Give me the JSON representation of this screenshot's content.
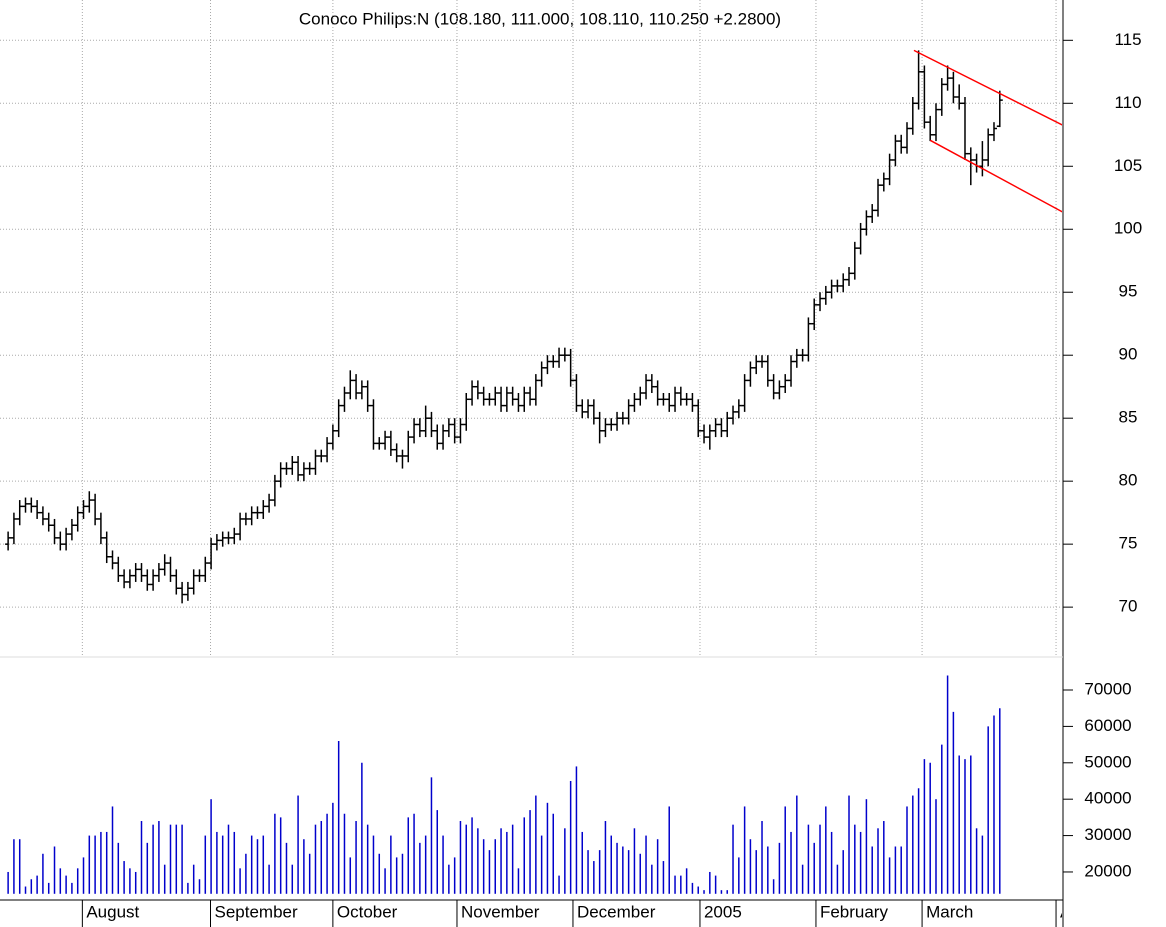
{
  "chart_data": [
    {
      "type": "ohlc",
      "title": "Conoco Philips:N (108.180, 111.000, 108.110, 110.250 +2.2800)",
      "color": "#000000",
      "grid": true,
      "xlim": [
        -1.4,
        181.9
      ],
      "ylim": [
        66.2,
        118.2
      ],
      "yticks": [
        70,
        75,
        80,
        85,
        90,
        95,
        100,
        105,
        110,
        115
      ],
      "open": [
        75,
        75.5,
        77,
        78,
        78.2,
        78,
        77.5,
        77,
        76.5,
        75.5,
        75,
        75.8,
        76.5,
        77.5,
        78,
        78.5,
        77,
        75.5,
        74,
        73.5,
        72.5,
        72,
        72.5,
        73,
        72.5,
        71.8,
        72.5,
        73,
        73.5,
        72.5,
        71.5,
        71,
        71.5,
        72.5,
        72.5,
        73.5,
        75,
        75.3,
        75.5,
        75.5,
        75.8,
        77,
        77,
        77.5,
        77.5,
        78,
        78.5,
        80,
        81,
        81,
        81.5,
        80.5,
        81,
        81,
        82,
        82,
        83,
        84,
        86,
        87,
        88,
        87,
        87.5,
        86,
        83,
        83,
        83.5,
        82.5,
        82,
        82,
        83.5,
        84.5,
        84,
        85,
        84,
        83,
        84,
        84.5,
        83.5,
        84.5,
        86.5,
        87.5,
        87,
        86.5,
        86.5,
        87,
        86,
        87,
        86.5,
        86,
        87,
        86.5,
        88,
        89,
        89.5,
        89.5,
        90,
        90,
        88,
        86,
        85.5,
        86,
        85,
        84,
        84.5,
        84.5,
        85,
        85,
        86,
        86.5,
        87,
        88,
        87.5,
        86.5,
        86.5,
        86,
        87,
        86.5,
        86.5,
        86,
        84,
        83.5,
        84,
        84.5,
        84,
        85,
        85.5,
        86,
        88,
        89,
        89.5,
        89.5,
        88,
        87,
        87.5,
        88,
        89.5,
        90,
        90,
        92.5,
        94,
        94.5,
        95,
        95.5,
        95.5,
        96,
        96.5,
        98.5,
        100,
        101,
        101.5,
        103.5,
        104,
        105.5,
        107,
        106.5,
        108,
        110,
        112.5,
        108.5,
        107.5,
        109.5,
        111.5,
        112,
        110.5,
        110,
        106,
        105.5,
        105,
        105.5,
        107.5,
        108.18
      ],
      "high": [
        76,
        77.5,
        78.5,
        78.7,
        78.7,
        78.5,
        78,
        77.5,
        77,
        76,
        76.3,
        77,
        78,
        78.5,
        79.2,
        79,
        77.5,
        76,
        74.5,
        74,
        73,
        73,
        73.5,
        73.5,
        73,
        73,
        73.5,
        74.2,
        74,
        73,
        72,
        72,
        73,
        73,
        74,
        75.5,
        75.8,
        76,
        76,
        76.3,
        77.5,
        77.5,
        78,
        78,
        78.5,
        79,
        80.5,
        81.5,
        81.5,
        82,
        82,
        81.5,
        81.5,
        82.5,
        82.5,
        83.5,
        84.5,
        86.5,
        87.5,
        88.8,
        88.5,
        88,
        88,
        86.5,
        83.5,
        84,
        84,
        83,
        82.5,
        84,
        85,
        85,
        86,
        85.5,
        84.5,
        84.5,
        85,
        85,
        85,
        87,
        88,
        88,
        87.5,
        87,
        87.5,
        87.5,
        87.5,
        87.5,
        87,
        87.5,
        87.5,
        88.5,
        89.5,
        90,
        90,
        90.6,
        90.6,
        90.5,
        88.5,
        86.5,
        86.5,
        86.5,
        85.5,
        85,
        85,
        85.5,
        85.5,
        86.5,
        87,
        87.5,
        88.5,
        88.5,
        88,
        87,
        87,
        87.5,
        87.5,
        87,
        87,
        86.5,
        84.5,
        84.5,
        85,
        85,
        85.5,
        86,
        86.5,
        88.5,
        89.5,
        90,
        90,
        90,
        88.5,
        88,
        88.5,
        90,
        90.5,
        90.5,
        93,
        94.5,
        95,
        95.5,
        96,
        96,
        96.5,
        97,
        99,
        100.5,
        101.5,
        102,
        104,
        104.5,
        106,
        107.5,
        107.5,
        108.5,
        110.5,
        114.2,
        113,
        109,
        110,
        112,
        113,
        112.5,
        111.5,
        110.5,
        106.5,
        106,
        107,
        108,
        108.5,
        111
      ],
      "low": [
        74.5,
        75,
        76.5,
        77.5,
        77.5,
        77,
        76.5,
        76,
        75,
        74.5,
        74.5,
        75.3,
        76,
        77,
        77.5,
        76.5,
        75,
        73.5,
        73,
        72,
        71.5,
        71.5,
        72,
        72,
        71.3,
        71.3,
        72,
        72.5,
        72,
        71,
        70.3,
        70.5,
        71,
        72,
        72,
        73,
        74.5,
        74.8,
        75,
        75,
        75.3,
        76.5,
        76.5,
        77,
        77,
        77.5,
        78,
        79.5,
        80.5,
        80.5,
        80,
        80,
        80.5,
        80.5,
        81.5,
        81.5,
        82.5,
        83.5,
        85.5,
        86.5,
        86.5,
        86.5,
        85.5,
        82.5,
        82.5,
        82.5,
        82,
        81.5,
        81,
        81.5,
        83,
        83.5,
        83.5,
        83.5,
        82.5,
        82.5,
        83.5,
        83,
        83,
        84,
        86,
        86.5,
        86,
        86,
        86,
        85.5,
        85.5,
        86,
        85.5,
        85.5,
        86,
        86,
        87.5,
        88.5,
        89,
        89,
        89.5,
        87.5,
        85.5,
        85,
        85,
        84.5,
        83,
        83.5,
        84,
        84,
        84.5,
        84.5,
        85.5,
        86,
        86.5,
        87,
        86,
        86,
        85.5,
        85.5,
        86,
        86,
        85.5,
        83.5,
        83,
        82.5,
        83.5,
        83.5,
        83.5,
        84.5,
        85,
        85.5,
        87.5,
        88.5,
        89,
        87.5,
        86.5,
        86.5,
        87,
        87.5,
        89,
        89.5,
        89.5,
        92,
        93.5,
        94,
        94.5,
        95,
        95,
        95.5,
        96,
        98,
        99.5,
        100.5,
        101,
        103,
        103.5,
        105,
        106,
        106,
        107.5,
        109.5,
        108,
        107,
        107,
        109,
        111,
        110,
        109.5,
        105.5,
        103.5,
        104.5,
        104.2,
        105,
        107,
        108.11
      ],
      "close": [
        75.5,
        77,
        78,
        78.2,
        78,
        77.5,
        77,
        76.5,
        75.5,
        75,
        75.8,
        76.5,
        77.5,
        78,
        78.5,
        77,
        75.5,
        74,
        73.5,
        72.5,
        72,
        72.5,
        73,
        72.5,
        71.8,
        72.5,
        73,
        73.5,
        72.5,
        71.5,
        71,
        71.5,
        72.5,
        72.5,
        73.5,
        75,
        75.3,
        75.5,
        75.5,
        75.8,
        77,
        77,
        77.5,
        77.5,
        78,
        78.5,
        80,
        81,
        81,
        81.5,
        80.5,
        81,
        81,
        82,
        82,
        83,
        84,
        86,
        87,
        88,
        87,
        87.5,
        86,
        83,
        83,
        83.5,
        82.5,
        82,
        82,
        83.5,
        84.5,
        84,
        85,
        84,
        83,
        84,
        84.5,
        83.5,
        84.5,
        86.5,
        87.5,
        87,
        86.5,
        86.5,
        87,
        86,
        87,
        86.5,
        86,
        87,
        86.5,
        88,
        89,
        89.5,
        89.5,
        90,
        90,
        88,
        86,
        85.5,
        86,
        85,
        84,
        84.5,
        84.5,
        85,
        85,
        86,
        86.5,
        87,
        88,
        87.5,
        86.5,
        86.5,
        86,
        87,
        86.5,
        86.5,
        86,
        84,
        83.5,
        84,
        84.5,
        84,
        85,
        85.5,
        86,
        88,
        89,
        89.5,
        89.5,
        88,
        87,
        87.5,
        88,
        89.5,
        90,
        90,
        92.5,
        94,
        94.5,
        95,
        95.5,
        95.5,
        96,
        96.5,
        98.5,
        100,
        101,
        101.5,
        103.5,
        104,
        105.5,
        107,
        106.5,
        108,
        110,
        112.5,
        108.5,
        107.5,
        109.5,
        111.5,
        112,
        110.5,
        110,
        106,
        105.5,
        105,
        105.5,
        107.5,
        108,
        110.25
      ],
      "lines": [
        {
          "color": "#ff0000",
          "x": [
            156.2,
            181.9
          ],
          "y": [
            114.2,
            108.25
          ]
        },
        {
          "color": "#ff0000",
          "x": [
            159,
            181.9
          ],
          "y": [
            107.06,
            101.35
          ]
        }
      ]
    },
    {
      "type": "bar",
      "color": "#0000cc",
      "xlim": [
        -1.4,
        181.9
      ],
      "ylim": [
        14000,
        78000
      ],
      "yticks": [
        20000,
        30000,
        40000,
        50000,
        60000,
        70000
      ],
      "xticks": [
        {
          "value": 12.8,
          "label": "August"
        },
        {
          "value": 34.9,
          "label": "September"
        },
        {
          "value": 56,
          "label": "October"
        },
        {
          "value": 77.4,
          "label": "November"
        },
        {
          "value": 97.4,
          "label": "December"
        },
        {
          "value": 119.3,
          "label": "2005"
        },
        {
          "value": 139.3,
          "label": "February"
        },
        {
          "value": 157.6,
          "label": "March"
        },
        {
          "value": 180.7,
          "label": "April"
        }
      ],
      "values": [
        20000,
        29000,
        29000,
        16000,
        18000,
        19000,
        25000,
        17000,
        27000,
        21000,
        19000,
        17000,
        21000,
        24000,
        30000,
        30000,
        31000,
        31000,
        38000,
        28000,
        23000,
        21000,
        20000,
        34000,
        28000,
        33000,
        34000,
        22000,
        33000,
        33000,
        33000,
        17000,
        22000,
        18000,
        30000,
        40000,
        31000,
        30000,
        33000,
        31000,
        21000,
        25000,
        30000,
        29000,
        30000,
        22000,
        36000,
        35000,
        28000,
        22000,
        41000,
        29000,
        25000,
        33000,
        34000,
        36000,
        39000,
        56000,
        36000,
        24000,
        34000,
        50000,
        33000,
        30000,
        25000,
        21000,
        30000,
        24000,
        25000,
        35000,
        36000,
        28000,
        30000,
        46000,
        37000,
        30000,
        22000,
        24000,
        34000,
        33000,
        35000,
        32000,
        29000,
        26000,
        29000,
        32000,
        31000,
        33000,
        21000,
        35000,
        37000,
        41000,
        30000,
        39000,
        36000,
        19000,
        32000,
        45000,
        49000,
        31000,
        26000,
        23000,
        26000,
        34000,
        30000,
        28000,
        27000,
        26000,
        32000,
        25000,
        30000,
        22000,
        29000,
        23000,
        38000,
        19000,
        19000,
        21000,
        17000,
        16000,
        15000,
        20000,
        19000,
        15000,
        15000,
        33000,
        24000,
        38000,
        29000,
        26000,
        34000,
        27000,
        18000,
        28000,
        38000,
        31000,
        41000,
        22000,
        33000,
        28000,
        33000,
        38000,
        31000,
        22000,
        26000,
        41000,
        33000,
        31000,
        40000,
        27000,
        32000,
        34000,
        24000,
        27000,
        27000,
        38000,
        41000,
        43000,
        51000,
        50000,
        40000,
        55000,
        74000,
        64000,
        52000,
        51000,
        52000,
        32000,
        30000,
        60000,
        63000,
        65000
      ]
    }
  ]
}
